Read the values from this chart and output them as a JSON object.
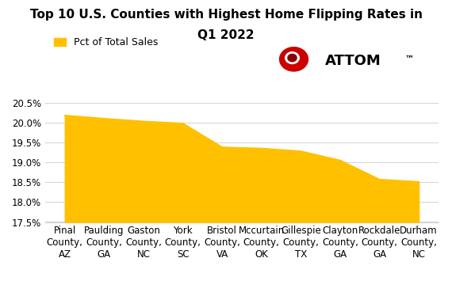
{
  "title_line1": "Top 10 U.S. Counties with Highest Home Flipping Rates in",
  "title_line2": "Q1 2022",
  "categories": [
    "Pinal\nCounty,\nAZ",
    "Paulding\nCounty,\nGA",
    "Gaston\nCounty,\nNC",
    "York\nCounty,\nSC",
    "Bristol\nCounty,\nVA",
    "Mccurtain\nCounty,\nOK",
    "Gillespie\nCounty,\nTX",
    "Clayton\nCounty,\nGA",
    "Rockdale\nCounty,\nGA",
    "Durham\nCounty,\nNC"
  ],
  "values": [
    0.2018,
    0.201,
    0.2003,
    0.1998,
    0.1938,
    0.1935,
    0.1928,
    0.1905,
    0.1857,
    0.1851
  ],
  "fill_color": "#FFC000",
  "line_color": "#FFC000",
  "background_color": "#FFFFFF",
  "ylim_min": 0.175,
  "ylim_max": 0.207,
  "yticks": [
    0.175,
    0.18,
    0.185,
    0.19,
    0.195,
    0.2,
    0.205
  ],
  "legend_label": "Pct of Total Sales",
  "title_fontsize": 11,
  "tick_fontsize": 8.5
}
